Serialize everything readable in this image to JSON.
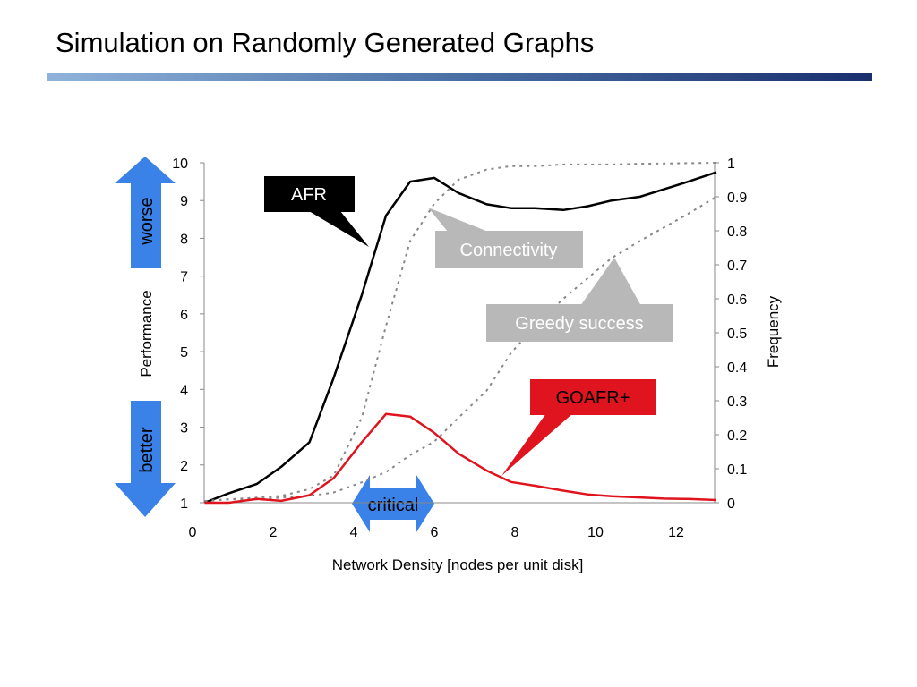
{
  "title": "Simulation on Randomly Generated Graphs",
  "colors": {
    "accent_bar": "#1a2f6e",
    "afr": "#000000",
    "goafr": "#e0141e",
    "dotted": "#888888",
    "arrow_blue": "#3b82e8",
    "callout_gray": "#b8b8b8"
  },
  "arrows": {
    "worse": "worse",
    "better": "better",
    "critical": "critical"
  },
  "callouts": {
    "afr": "AFR",
    "connectivity": "Connectivity",
    "greedy": "Greedy success",
    "goafr": "GOAFR+"
  },
  "chart_data": {
    "type": "line",
    "xlabel": "Network Density [nodes per unit disk]",
    "ylabel_left": "Performance",
    "ylabel_right": "Frequency",
    "xlim": [
      0,
      13
    ],
    "ylim_left": [
      1,
      10
    ],
    "ylim_right": [
      0,
      1
    ],
    "x_ticks": [
      "0",
      "2",
      "4",
      "6",
      "8",
      "10",
      "12"
    ],
    "y_left_ticks": [
      "1",
      "2",
      "3",
      "4",
      "5",
      "6",
      "7",
      "8",
      "9",
      "10"
    ],
    "y_right_ticks": [
      "0",
      "0.1",
      "0.2",
      "0.3",
      "0.4",
      "0.5",
      "0.6",
      "0.7",
      "0.8",
      "0.9",
      "1"
    ],
    "grid": false,
    "series": [
      {
        "name": "AFR",
        "axis": "left",
        "style": "solid",
        "x": [
          0.3,
          0.9,
          1.6,
          2.2,
          2.9,
          3.5,
          4.2,
          4.8,
          5.4,
          6.0,
          6.6,
          7.3,
          7.9,
          8.5,
          9.2,
          9.8,
          10.4,
          11.1,
          11.7,
          12.3,
          13.0
        ],
        "y": [
          1.0,
          1.25,
          1.5,
          1.95,
          2.6,
          4.3,
          6.5,
          8.6,
          9.5,
          9.6,
          9.2,
          8.9,
          8.8,
          8.8,
          8.75,
          8.85,
          9.0,
          9.1,
          9.3,
          9.5,
          9.75
        ]
      },
      {
        "name": "Connectivity",
        "axis": "right",
        "style": "dotted",
        "x": [
          0.3,
          0.9,
          1.6,
          2.2,
          2.9,
          3.5,
          4.2,
          4.8,
          5.4,
          6.0,
          6.6,
          7.3,
          7.9,
          8.5,
          9.2,
          9.8,
          10.4,
          11.1,
          11.7,
          12.3,
          13.0
        ],
        "y": [
          0.005,
          0.01,
          0.015,
          0.02,
          0.04,
          0.08,
          0.25,
          0.52,
          0.77,
          0.88,
          0.95,
          0.98,
          0.99,
          0.99,
          0.995,
          0.995,
          0.995,
          0.997,
          0.998,
          0.999,
          1.0
        ]
      },
      {
        "name": "Greedy success",
        "axis": "right",
        "style": "dotted",
        "x": [
          0.3,
          0.9,
          1.6,
          2.2,
          2.9,
          3.5,
          4.2,
          4.8,
          5.4,
          6.0,
          6.6,
          7.3,
          7.9,
          8.5,
          9.2,
          9.8,
          10.4,
          11.1,
          11.7,
          12.3,
          13.0
        ],
        "y": [
          0.005,
          0.01,
          0.01,
          0.015,
          0.02,
          0.03,
          0.06,
          0.09,
          0.14,
          0.18,
          0.25,
          0.33,
          0.44,
          0.52,
          0.6,
          0.66,
          0.72,
          0.77,
          0.81,
          0.85,
          0.9
        ]
      },
      {
        "name": "GOAFR+",
        "axis": "left",
        "style": "solid",
        "x": [
          0.3,
          0.9,
          1.6,
          2.2,
          2.9,
          3.5,
          4.2,
          4.8,
          5.4,
          6.0,
          6.6,
          7.3,
          7.9,
          8.5,
          9.2,
          9.8,
          10.4,
          11.1,
          11.7,
          12.3,
          13.0
        ],
        "y": [
          1.0,
          1.0,
          1.1,
          1.05,
          1.2,
          1.65,
          2.6,
          3.35,
          3.28,
          2.85,
          2.3,
          1.85,
          1.55,
          1.45,
          1.32,
          1.22,
          1.17,
          1.14,
          1.11,
          1.1,
          1.07
        ]
      }
    ]
  }
}
